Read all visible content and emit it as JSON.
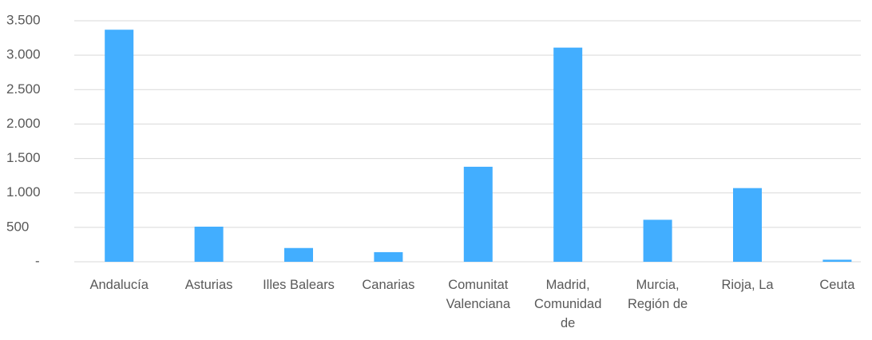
{
  "chart_data": {
    "type": "bar",
    "categories": [
      "Andalucía",
      "Asturias",
      "Illes Balears",
      "Canarias",
      "Comunitat Valenciana",
      "Madrid, Comunidad de",
      "Murcia, Región de",
      "Rioja, La",
      "Ceuta"
    ],
    "values": [
      3370,
      510,
      200,
      140,
      1380,
      3110,
      610,
      1070,
      30
    ],
    "color": "#42aeff",
    "ylim": [
      0,
      3500
    ],
    "yticks": [
      {
        "value": 0,
        "label": "-"
      },
      500,
      {
        "value": 1000,
        "label": "1.000"
      },
      {
        "value": 1500,
        "label": "1.500"
      },
      {
        "value": 2000,
        "label": "2.000"
      },
      {
        "value": 2500,
        "label": "2.500"
      },
      {
        "value": 3000,
        "label": "3.000"
      },
      {
        "value": 3500,
        "label": "3.500"
      }
    ],
    "grid": true
  }
}
